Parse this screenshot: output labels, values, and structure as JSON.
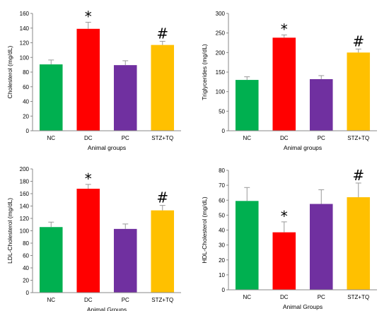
{
  "chart_data": [
    {
      "type": "bar",
      "categories": [
        "NC",
        "DC",
        "PC",
        "STZ+TQ"
      ],
      "values": [
        90.5,
        139,
        89.5,
        117
      ],
      "errors": [
        6,
        9,
        6,
        5
      ],
      "markers": [
        "",
        "*",
        "",
        "#"
      ],
      "colors": [
        "#00b050",
        "#ff0000",
        "#7030a0",
        "#ffc000"
      ],
      "xlabel": "Animal groups",
      "ylabel": "Cholesterol (mg/dL)",
      "ylim": [
        0,
        160
      ],
      "yticks": [
        0,
        20,
        40,
        60,
        80,
        100,
        120,
        140,
        160
      ],
      "grid": false
    },
    {
      "type": "bar",
      "categories": [
        "NC",
        "DC",
        "PC",
        "STZ+TQ"
      ],
      "values": [
        130,
        238,
        132,
        200
      ],
      "errors": [
        8,
        7,
        9,
        9
      ],
      "markers": [
        "",
        "*",
        "",
        "#"
      ],
      "colors": [
        "#00b050",
        "#ff0000",
        "#7030a0",
        "#ffc000"
      ],
      "xlabel": "Animal groups",
      "ylabel": "Triglycerides (mg/dL)",
      "ylim": [
        0,
        300
      ],
      "yticks": [
        0,
        50,
        100,
        150,
        200,
        250,
        300
      ],
      "grid": false
    },
    {
      "type": "bar",
      "categories": [
        "NC",
        "DC",
        "PC",
        "STZ+TQ"
      ],
      "values": [
        106,
        168,
        103,
        133
      ],
      "errors": [
        8,
        7,
        8,
        8
      ],
      "markers": [
        "",
        "*",
        "",
        "#"
      ],
      "colors": [
        "#00b050",
        "#ff0000",
        "#7030a0",
        "#ffc000"
      ],
      "xlabel": "Animal Groups",
      "ylabel": "LDL-Cholesterol (mg/dL)",
      "ylim": [
        0,
        200
      ],
      "yticks": [
        0,
        20,
        40,
        60,
        80,
        100,
        120,
        140,
        160,
        180,
        200
      ],
      "grid": false
    },
    {
      "type": "bar",
      "categories": [
        "NC",
        "DC",
        "PC",
        "STZ+TQ"
      ],
      "values": [
        59.5,
        38.5,
        57.5,
        62
      ],
      "errors": [
        9,
        7,
        9.5,
        9.5
      ],
      "markers": [
        "",
        "*",
        "",
        "#"
      ],
      "colors": [
        "#00b050",
        "#ff0000",
        "#7030a0",
        "#ffc000"
      ],
      "xlabel": "Animal Groups",
      "ylabel": "HDL-Cholesterol (mg/dL)",
      "ylim": [
        0,
        80
      ],
      "yticks": [
        0,
        10,
        20,
        30,
        40,
        50,
        60,
        70,
        80
      ],
      "grid": false
    }
  ]
}
